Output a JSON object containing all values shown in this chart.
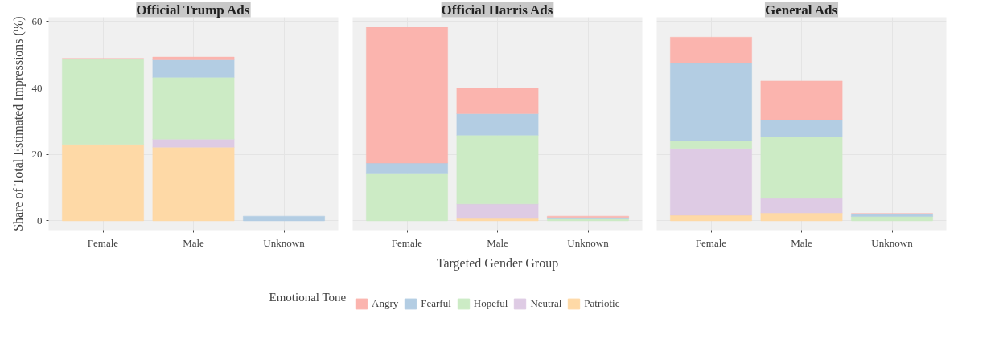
{
  "chart_data": [
    {
      "type": "bar",
      "title": "Official Trump Ads",
      "ylabel": "Share of Total Estimated Impressions (%)",
      "categories": [
        "Female",
        "Male",
        "Unknown"
      ],
      "stacked": true,
      "ylim": [
        -2.8,
        61.3
      ],
      "yticks": [
        0,
        20,
        40,
        60
      ],
      "grid": true,
      "series": [
        {
          "color": "#fed9a6",
          "values": [
            23.0,
            22.2,
            null
          ]
        },
        {
          "color": "#decbe4",
          "values": [
            null,
            2.4,
            null
          ]
        },
        {
          "color": "#ccebc5",
          "values": [
            25.7,
            18.6,
            null
          ]
        },
        {
          "color": "#b3cde3",
          "values": [
            null,
            5.3,
            1.4
          ]
        },
        {
          "color": "#fbb4ae",
          "values": [
            0.2,
            0.8,
            null
          ]
        }
      ]
    },
    {
      "type": "bar",
      "title": "Official Harris Ads",
      "xlabel": "Targeted Gender Group",
      "legend_title": "Emotional Tone",
      "legend": "bottom",
      "categories": [
        "Female",
        "Male",
        "Unknown"
      ],
      "stacked": true,
      "ylim": [
        -2.8,
        61.3
      ],
      "yticks": [
        0,
        20,
        40,
        60
      ],
      "grid": true,
      "tick_labels": "x",
      "series": [
        {
          "name": "Patriotic",
          "color": "#fed9a6",
          "values": [
            null,
            0.7,
            null
          ]
        },
        {
          "name": "Neutral",
          "color": "#decbe4",
          "values": [
            null,
            4.4,
            null
          ]
        },
        {
          "name": "Hopeful",
          "color": "#ccebc5",
          "values": [
            14.4,
            20.7,
            0.6
          ]
        },
        {
          "name": "Fearful",
          "color": "#b3cde3",
          "values": [
            3.0,
            6.5,
            0.4
          ]
        },
        {
          "name": "Angry",
          "color": "#fbb4ae",
          "values": [
            40.9,
            7.6,
            0.4
          ]
        }
      ]
    },
    {
      "type": "bar",
      "title": "General Ads",
      "categories": [
        "Female",
        "Male",
        "Unknown"
      ],
      "stacked": true,
      "ylim": [
        -2.8,
        61.3
      ],
      "yticks": [
        0,
        20,
        40,
        60
      ],
      "grid": true,
      "tick_labels": "x",
      "series": [
        {
          "color": "#fed9a6",
          "values": [
            1.7,
            2.4,
            null
          ]
        },
        {
          "color": "#decbe4",
          "values": [
            20.1,
            4.4,
            null
          ]
        },
        {
          "color": "#ccebc5",
          "values": [
            2.4,
            18.5,
            1.3
          ]
        },
        {
          "color": "#b3cde3",
          "values": [
            23.3,
            5.1,
            0.8
          ]
        },
        {
          "color": "#fbb4ae",
          "values": [
            7.8,
            11.7,
            0.1
          ]
        }
      ]
    }
  ]
}
